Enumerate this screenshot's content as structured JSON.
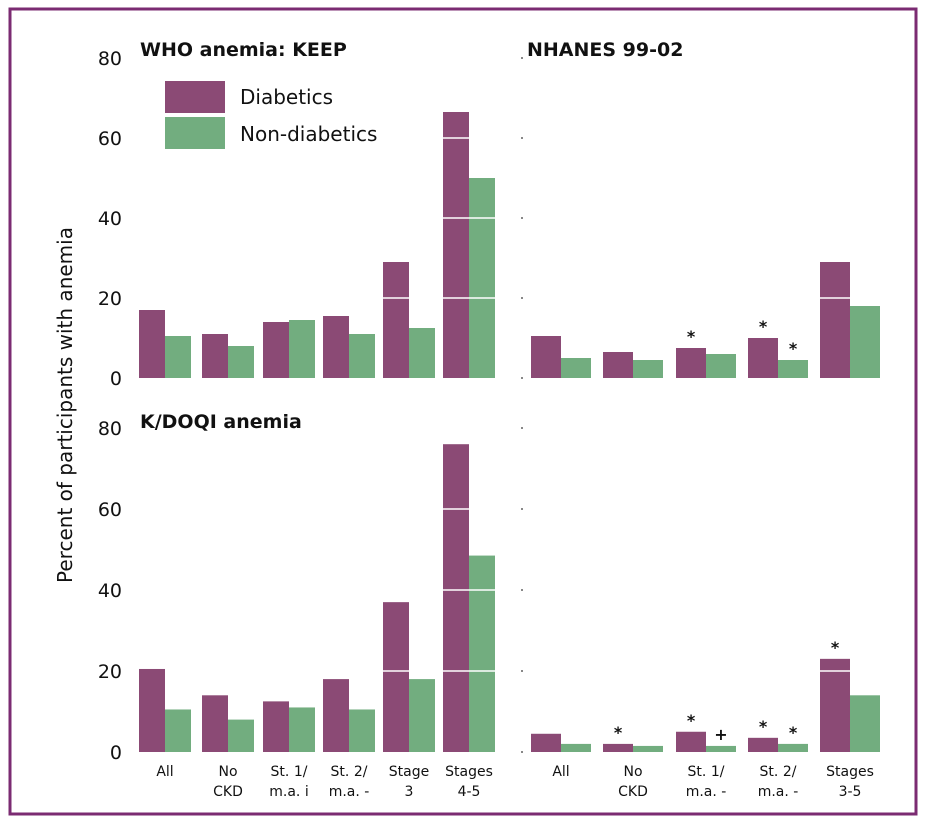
{
  "colors": {
    "diabetic": "#8b4a75",
    "nondiabetic": "#72ad7f",
    "border": "#7b2b72"
  },
  "ylabel": "Percent of participants with anemia",
  "legend": [
    {
      "label": "Diabetics",
      "color": "#8b4a75"
    },
    {
      "label": "Non-diabetics",
      "color": "#72ad7f"
    }
  ],
  "chart_data": [
    {
      "type": "bar",
      "title": "WHO anemia: KEEP",
      "categories": [
        [
          "All"
        ],
        [
          "No",
          "CKD"
        ],
        [
          "St. 1/",
          "m.a. i"
        ],
        [
          "St. 2/",
          "m.a. -"
        ],
        [
          "Stage",
          "3"
        ],
        [
          "Stages",
          "4-5"
        ]
      ],
      "ylim": [
        0,
        80
      ],
      "yticks": [
        0,
        20,
        40,
        60,
        80
      ],
      "series": [
        {
          "name": "Diabetics",
          "values": [
            17,
            11,
            14,
            15.5,
            29,
            66.5
          ]
        },
        {
          "name": "Non-diabetics",
          "values": [
            10.5,
            8,
            14.5,
            11,
            12.5,
            50
          ]
        }
      ],
      "annotations": []
    },
    {
      "type": "bar",
      "title": "NHANES 99-02",
      "categories": [
        [
          "All"
        ],
        [
          "No",
          "CKD"
        ],
        [
          "St. 1/",
          "m.a. -"
        ],
        [
          "St. 2/",
          "m.a. -"
        ],
        [
          "Stages",
          "3-5"
        ]
      ],
      "ylim": [
        0,
        80
      ],
      "series": [
        {
          "name": "Diabetics",
          "values": [
            10.5,
            6.5,
            7.5,
            10,
            29
          ]
        },
        {
          "name": "Non-diabetics",
          "values": [
            5,
            4.5,
            6,
            4.5,
            18
          ]
        }
      ],
      "annotations": [
        {
          "category": 2,
          "series": 0,
          "text": "*"
        },
        {
          "category": 3,
          "series": 0,
          "text": "*"
        },
        {
          "category": 3,
          "series": 1,
          "text": "*"
        }
      ]
    },
    {
      "type": "bar",
      "title": "K/DOQI anemia",
      "categories": [
        [
          "All"
        ],
        [
          "No",
          "CKD"
        ],
        [
          "St. 1/",
          "m.a. i"
        ],
        [
          "St. 2/",
          "m.a. -"
        ],
        [
          "Stage",
          "3"
        ],
        [
          "Stages",
          "4-5"
        ]
      ],
      "ylim": [
        0,
        80
      ],
      "yticks": [
        0,
        20,
        40,
        60,
        80
      ],
      "series": [
        {
          "name": "Diabetics",
          "values": [
            20.5,
            14,
            12.5,
            18,
            37,
            76
          ]
        },
        {
          "name": "Non-diabetics",
          "values": [
            10.5,
            8,
            11,
            10.5,
            18,
            48.5
          ]
        }
      ],
      "annotations": []
    },
    {
      "type": "bar",
      "title": "",
      "categories": [
        [
          "All"
        ],
        [
          "No",
          "CKD"
        ],
        [
          "St. 1/",
          "m.a. -"
        ],
        [
          "St. 2/",
          "m.a. -"
        ],
        [
          "Stages",
          "3-5"
        ]
      ],
      "ylim": [
        0,
        80
      ],
      "series": [
        {
          "name": "Diabetics",
          "values": [
            4.5,
            2,
            5,
            3.5,
            23
          ]
        },
        {
          "name": "Non-diabetics",
          "values": [
            2,
            1.5,
            1.5,
            2,
            14
          ]
        }
      ],
      "annotations": [
        {
          "category": 1,
          "series": 0,
          "text": "*"
        },
        {
          "category": 2,
          "series": 0,
          "text": "*"
        },
        {
          "category": 2,
          "series": 1,
          "text": "+"
        },
        {
          "category": 3,
          "series": 0,
          "text": "*"
        },
        {
          "category": 3,
          "series": 1,
          "text": "*"
        },
        {
          "category": 4,
          "series": 0,
          "text": "*"
        }
      ]
    }
  ]
}
